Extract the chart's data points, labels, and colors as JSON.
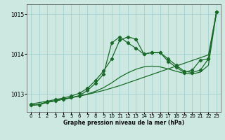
{
  "title": "Graphe pression niveau de la mer (hPa)",
  "background_color": "#cce8e0",
  "plot_bg_color": "#cce8e0",
  "grid_color": "#99cccc",
  "line_color": "#1a6b2a",
  "xlim": [
    -0.5,
    23.5
  ],
  "ylim": [
    1012.55,
    1015.25
  ],
  "yticks": [
    1013,
    1014,
    1015
  ],
  "xticks": [
    0,
    1,
    2,
    3,
    4,
    5,
    6,
    7,
    8,
    9,
    10,
    11,
    12,
    13,
    14,
    15,
    16,
    17,
    18,
    19,
    20,
    21,
    22,
    23
  ],
  "series1_x": [
    0,
    1,
    2,
    3,
    4,
    5,
    6,
    7,
    8,
    9,
    10,
    11,
    12,
    13,
    14,
    15,
    16,
    17,
    18,
    19,
    20,
    21,
    22,
    23
  ],
  "series1_y": [
    1012.72,
    1012.74,
    1012.8,
    1012.83,
    1012.87,
    1012.91,
    1012.95,
    1012.99,
    1013.04,
    1013.09,
    1013.15,
    1013.21,
    1013.28,
    1013.35,
    1013.42,
    1013.49,
    1013.56,
    1013.63,
    1013.7,
    1013.77,
    1013.84,
    1013.91,
    1013.98,
    1015.05
  ],
  "series2_x": [
    0,
    1,
    2,
    3,
    4,
    5,
    6,
    7,
    8,
    9,
    10,
    11,
    12,
    13,
    14,
    15,
    16,
    17,
    18,
    19,
    20,
    21,
    22,
    23
  ],
  "series2_y": [
    1012.72,
    1012.74,
    1012.8,
    1012.83,
    1012.87,
    1012.91,
    1012.95,
    1013.0,
    1013.07,
    1013.16,
    1013.28,
    1013.42,
    1013.53,
    1013.62,
    1013.68,
    1013.7,
    1013.68,
    1013.63,
    1013.57,
    1013.52,
    1013.5,
    1013.55,
    1013.72,
    1015.05
  ],
  "series3_x": [
    0,
    2,
    3,
    4,
    5,
    6,
    7,
    8,
    9,
    10,
    11,
    12,
    13,
    14,
    15,
    16,
    17,
    18,
    19,
    20,
    21,
    22,
    23
  ],
  "series3_y": [
    1012.75,
    1012.82,
    1012.86,
    1012.9,
    1012.95,
    1013.02,
    1013.14,
    1013.34,
    1013.58,
    1013.88,
    1014.35,
    1014.43,
    1014.38,
    1014.0,
    1014.04,
    1014.04,
    1013.88,
    1013.72,
    1013.57,
    1013.54,
    1013.6,
    1013.88,
    1015.05
  ],
  "series4_x": [
    0,
    1,
    2,
    3,
    4,
    5,
    6,
    7,
    8,
    9,
    10,
    11,
    12,
    13,
    14,
    15,
    16,
    17,
    18,
    19,
    20,
    21,
    22,
    23
  ],
  "series4_y": [
    1012.72,
    1012.73,
    1012.79,
    1012.83,
    1012.87,
    1012.91,
    1012.96,
    1013.09,
    1013.27,
    1013.5,
    1014.28,
    1014.43,
    1014.28,
    1014.15,
    1014.0,
    1014.04,
    1014.04,
    1013.82,
    1013.67,
    1013.54,
    1013.6,
    1013.85,
    1013.88,
    1015.05
  ]
}
